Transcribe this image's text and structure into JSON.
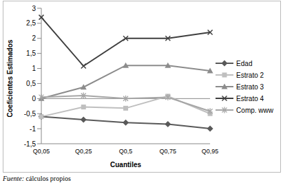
{
  "chart_data": {
    "type": "line",
    "x_label": "Cuantiles",
    "y_label": "Coeficientes Estimados",
    "categories": [
      "Q0,05",
      "Q0,25",
      "Q0,5",
      "Q0,75",
      "Q0,95"
    ],
    "series": [
      {
        "name": "Edad",
        "color": "#595959",
        "marker": "diamond",
        "values": [
          -0.6,
          -0.7,
          -0.8,
          -0.85,
          -1.0
        ]
      },
      {
        "name": "Estrato 2",
        "color": "#bfbfbf",
        "marker": "square",
        "values": [
          -0.6,
          -0.28,
          -0.32,
          0.08,
          -0.5
        ]
      },
      {
        "name": "Estrato 3",
        "color": "#8c8c8c",
        "marker": "triangle",
        "values": [
          0.0,
          0.38,
          1.1,
          1.1,
          0.92
        ]
      },
      {
        "name": "Estrato 4",
        "color": "#3f3f3f",
        "marker": "x",
        "values": [
          2.7,
          1.08,
          2.0,
          2.0,
          2.2
        ]
      },
      {
        "name": "Comp. www",
        "color": "#a6a6a6",
        "marker": "star",
        "values": [
          0.05,
          0.1,
          0.0,
          0.04,
          -0.42
        ]
      }
    ],
    "ylim": [
      -1.5,
      3
    ],
    "yticks": [
      {
        "value": -1.5,
        "label": "-1,5"
      },
      -1,
      {
        "value": -0.5,
        "label": "-0,5"
      },
      0,
      {
        "value": 0.5,
        "label": "0,5"
      },
      1,
      {
        "value": 1.5,
        "label": "1,5"
      },
      2,
      {
        "value": 2.5,
        "label": "2,5"
      },
      3
    ],
    "grid": false,
    "legend": "right",
    "annotations": [
      "Fuente: cálculos propios"
    ]
  }
}
